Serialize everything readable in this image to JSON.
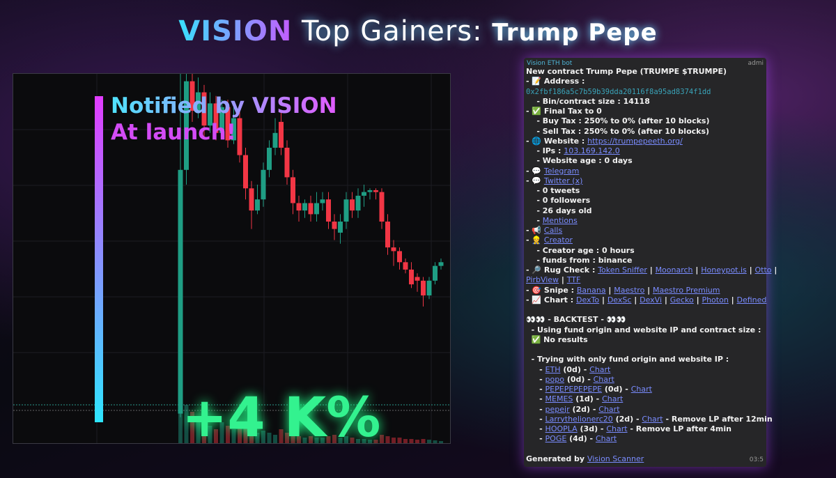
{
  "header": {
    "brand": "VISION",
    "title": "Top Gainers:",
    "token": "Trump Pepe"
  },
  "chart_data": {
    "type": "candlestick",
    "annotations": [
      "Notified by VISION",
      "At launch!",
      "+4 K%"
    ],
    "up_color": "#1f9e84",
    "down_color": "#f23645",
    "ylim": [
      0,
      100
    ],
    "open": [
      8,
      74,
      98,
      90,
      95,
      86,
      92,
      84,
      91,
      82,
      88,
      78,
      69,
      63,
      66,
      74,
      80,
      87,
      80,
      72,
      65,
      63,
      65,
      62,
      65,
      66,
      60,
      57,
      60,
      66,
      63,
      67,
      68,
      68.5,
      68,
      60,
      53,
      52,
      49,
      47,
      45,
      44,
      40,
      44,
      48
    ],
    "close": [
      74,
      98,
      90,
      95,
      86,
      92,
      84,
      91,
      82,
      88,
      78,
      69,
      63,
      66,
      74,
      80,
      84,
      80,
      72,
      65,
      63,
      65,
      62,
      65,
      66,
      60,
      58,
      60,
      66,
      63,
      67,
      68,
      68.5,
      68,
      60,
      53,
      52,
      49,
      47,
      43,
      44,
      40,
      44,
      48,
      49
    ],
    "high": [
      100,
      100,
      100,
      99,
      97,
      95,
      94,
      93,
      93,
      92,
      90,
      80,
      71,
      70,
      76,
      82,
      88,
      90,
      82,
      74,
      67,
      66,
      67,
      68,
      68,
      68,
      62,
      62,
      68,
      68,
      69,
      70,
      69,
      69,
      69,
      62,
      55,
      53,
      50,
      49,
      46,
      45,
      45,
      49,
      50
    ],
    "low": [
      7,
      70,
      87,
      88,
      83,
      84,
      82,
      83,
      80,
      81,
      76,
      66,
      58,
      62,
      64,
      72,
      78,
      78,
      70,
      62,
      60,
      61,
      60,
      60,
      63,
      58,
      55,
      54,
      58,
      61,
      61,
      64,
      66,
      66,
      58,
      51,
      48,
      47,
      46,
      42,
      41,
      37,
      39,
      43,
      47
    ],
    "volume": [
      60,
      55,
      45,
      30,
      35,
      25,
      20,
      30,
      25,
      20,
      30,
      25,
      20,
      15,
      18,
      15,
      12,
      20,
      15,
      12,
      10,
      8,
      10,
      8,
      8,
      10,
      12,
      8,
      10,
      8,
      6,
      6,
      5,
      5,
      12,
      10,
      8,
      8,
      6,
      6,
      5,
      6,
      5,
      4,
      3
    ]
  },
  "message": {
    "sender": "Vision ETH bot",
    "role": "admi",
    "time": "03:5",
    "blocks": [
      [
        [
          {
            "bold": "New contract Trump Pepe (TRUMPE $TRUMPE)"
          }
        ],
        [
          "- 📝 Address :"
        ],
        [
          {
            "code": "0x2fbf186a5c7b59b39dda20116f8a95ad8374f1dd"
          }
        ],
        [
          "    - Bin/contract size : 14118"
        ],
        [
          "- ✅ Final Tax to 0"
        ],
        [
          "    - Buy Tax : 250% to 0% (after 10 blocks)"
        ],
        [
          "    - Sell Tax : 250% to 0% (after 10 blocks)"
        ],
        [
          "- 🌐 Website : ",
          {
            "link": "https://trumpepeeth.org/"
          }
        ],
        [
          "    - IPs : ",
          {
            "link": "103.169.142.0"
          }
        ],
        [
          "    - Website age : 0 days"
        ],
        [
          "- 💬 ",
          {
            "link": "Telegram"
          }
        ],
        [
          "- 💬 ",
          {
            "link": "Twitter (x)"
          }
        ],
        [
          "    - 0 tweets"
        ],
        [
          "    - 0 followers"
        ],
        [
          "    - 26 days old"
        ],
        [
          "    - ",
          {
            "link": "Mentions"
          }
        ],
        [
          "- 📢 ",
          {
            "link": "Calls"
          }
        ],
        [
          "- 👷 ",
          {
            "link": "Creator"
          }
        ],
        [
          "    - Creator age : 0 hours"
        ],
        [
          "    - funds from : binance"
        ],
        [
          "- 🔎 Rug Check : ",
          {
            "link": "Token Sniffer"
          },
          " | ",
          {
            "link": "Moonarch"
          },
          " | ",
          {
            "link": "Honeypot.is"
          },
          " | ",
          {
            "link": "Otto"
          },
          " |"
        ],
        [
          {
            "link": "PirbView"
          },
          " | ",
          {
            "link": "TTF"
          }
        ],
        [
          "- 🎯 Snipe : ",
          {
            "link": "Banana"
          },
          " | ",
          {
            "link": "Maestro"
          },
          " | ",
          {
            "link": "Maestro Premium"
          }
        ],
        [
          "- 📈 Chart : ",
          {
            "link": "DexTo"
          },
          " | ",
          {
            "link": "DexSc"
          },
          " | ",
          {
            "link": "DexVi"
          },
          " | ",
          {
            "link": "Gecko"
          },
          " | ",
          {
            "link": "Photon"
          },
          " | ",
          {
            "link": "Defined"
          }
        ]
      ],
      [
        [
          "👀👀 - BACKTEST - 👀👀"
        ],
        [
          "  - Using fund origin and website IP and contract size :"
        ],
        [
          "  ✅ No results"
        ]
      ],
      [
        [
          "  - Trying with ",
          {
            "bold": "only"
          },
          " fund origin and website IP :"
        ],
        [
          "     - ",
          {
            "link": "ETH"
          },
          " (0d) - ",
          {
            "link": "Chart"
          }
        ],
        [
          "     - ",
          {
            "link": "popo"
          },
          " (0d) - ",
          {
            "link": "Chart"
          }
        ],
        [
          "     - ",
          {
            "link": "PEPEPEPEPEPE"
          },
          " (0d) - ",
          {
            "link": "Chart"
          }
        ],
        [
          "     - ",
          {
            "link": "MEMES"
          },
          " (1d) - ",
          {
            "link": "Chart"
          }
        ],
        [
          "     - ",
          {
            "link": "pepejr"
          },
          " (2d) - ",
          {
            "link": "Chart"
          }
        ],
        [
          "     - ",
          {
            "link": "Larrythelionerc20"
          },
          " (2d) - ",
          {
            "link": "Chart"
          },
          " - Remove LP after 12min"
        ],
        [
          "     - ",
          {
            "link": "HOOPLA"
          },
          " (3d) - ",
          {
            "link": "Chart"
          },
          " - Remove LP after 4min"
        ],
        [
          "     - ",
          {
            "link": "POGE"
          },
          " (4d) - ",
          {
            "link": "Chart"
          }
        ]
      ],
      [
        [
          "Generated by ",
          {
            "link": "Vision Scanner"
          }
        ]
      ]
    ]
  }
}
